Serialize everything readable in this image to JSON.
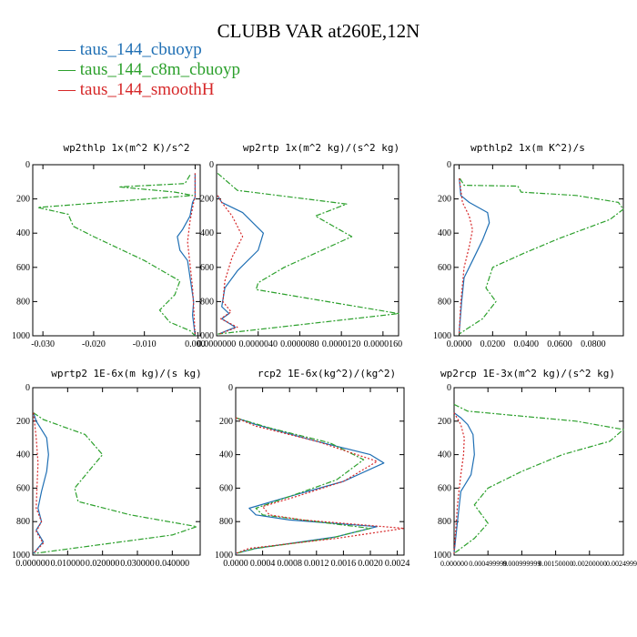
{
  "title": "CLUBB VAR at260E,12N",
  "legend": [
    {
      "label": "— taus_144_cbuoyp",
      "color": "#1f6fb4",
      "dash": "solid"
    },
    {
      "label": "— taus_144_c8m_cbuoyp",
      "color": "#2ca02c",
      "dash": "dashdot"
    },
    {
      "label": "— taus_144_smoothH",
      "color": "#d62728",
      "dash": "dot"
    }
  ],
  "chart_data": [
    {
      "type": "line",
      "title": "wp2thlp  1x(m^2 K)/s^2",
      "xlim": [
        -0.032,
        0.001
      ],
      "ylim": [
        1000,
        0
      ],
      "xticks": [
        -0.03,
        -0.02,
        -0.01,
        0.0
      ],
      "xticklabels": [
        "-0.030",
        "-0.020",
        "-0.010",
        "0.000"
      ],
      "yticks": [
        0,
        200,
        400,
        600,
        800,
        1000
      ],
      "yticklabels": [
        "0",
        "200",
        "400",
        "600",
        "800",
        "1000"
      ],
      "series": [
        {
          "name": "taus_144_cbuoyp",
          "x": [
            0.0,
            0.0,
            -0.0005,
            -0.001,
            -0.0025,
            -0.0035,
            -0.003,
            -0.0015,
            -0.0008,
            -0.0003,
            -0.0005,
            -0.0002,
            0.0
          ],
          "y": [
            50,
            190,
            220,
            300,
            380,
            420,
            500,
            560,
            700,
            800,
            880,
            950,
            1000
          ]
        },
        {
          "name": "taus_144_c8m_cbuoyp",
          "x": [
            -0.001,
            -0.002,
            -0.015,
            -0.004,
            -0.0005,
            -0.031,
            -0.025,
            -0.024,
            -0.02,
            -0.01,
            -0.003,
            -0.004,
            -0.007,
            -0.005,
            -0.001,
            0.0
          ],
          "y": [
            60,
            110,
            130,
            160,
            180,
            250,
            290,
            360,
            420,
            560,
            680,
            760,
            850,
            920,
            970,
            1000
          ]
        },
        {
          "name": "taus_144_smoothH",
          "x": [
            0.0,
            0.0,
            -0.0003,
            -0.001,
            -0.0015,
            -0.001,
            -0.0005,
            -0.0002,
            0.0
          ],
          "y": [
            50,
            190,
            220,
            330,
            450,
            580,
            720,
            880,
            1000
          ]
        }
      ]
    },
    {
      "type": "line",
      "title": "wp2rtp  1x(m^2 kg)/(s^2 kg)",
      "xlim": [
        0,
        1.75e-05
      ],
      "ylim": [
        1000,
        0
      ],
      "xticks": [
        0,
        4e-06,
        8e-06,
        1.2e-05,
        1.6e-05
      ],
      "xticklabels": [
        "0.0000000",
        "0.0000040",
        "0.0000080",
        "0.0000120",
        "0.0000160"
      ],
      "yticks": [
        0,
        200,
        400,
        600,
        800,
        1000
      ],
      "yticklabels": [
        "0",
        "200",
        "400",
        "600",
        "800",
        "1000"
      ],
      "series": [
        {
          "name": "taus_144_cbuoyp",
          "x": [
            1e-07,
            5e-07,
            2.5e-06,
            4.5e-06,
            4e-06,
            2e-06,
            8e-07,
            5e-07,
            1.2e-06,
            5e-07,
            1.8e-06,
            2e-07
          ],
          "y": [
            180,
            220,
            280,
            400,
            500,
            620,
            720,
            830,
            870,
            900,
            950,
            990
          ]
        },
        {
          "name": "taus_144_c8m_cbuoyp",
          "x": [
            1e-07,
            2e-06,
            1.25e-05,
            9.5e-06,
            1.3e-05,
            6.5e-06,
            4e-06,
            3.8e-06,
            1.75e-05,
            1e-07
          ],
          "y": [
            50,
            150,
            230,
            300,
            420,
            600,
            690,
            730,
            870,
            990
          ]
        },
        {
          "name": "taus_144_smoothH",
          "x": [
            1e-07,
            5e-07,
            1.5e-06,
            2.5e-06,
            1.5e-06,
            8e-07,
            6e-07,
            1.4e-06,
            4e-07,
            2e-06,
            2e-07
          ],
          "y": [
            180,
            220,
            300,
            420,
            540,
            680,
            800,
            860,
            900,
            950,
            990
          ]
        }
      ]
    },
    {
      "type": "line",
      "title": "wpthlp2  1x(m K^2)/s",
      "xlim": [
        -0.003,
        0.098
      ],
      "ylim": [
        1000,
        0
      ],
      "xticks": [
        0.0,
        0.02,
        0.04,
        0.06,
        0.08
      ],
      "xticklabels": [
        "0.0000",
        "0.0200",
        "0.0400",
        "0.0600",
        "0.0800"
      ],
      "yticks": [
        0,
        200,
        400,
        600,
        800,
        1000
      ],
      "yticklabels": [
        "0",
        "200",
        "400",
        "600",
        "800",
        "1000"
      ],
      "series": [
        {
          "name": "taus_144_cbuoyp",
          "x": [
            0.0001,
            0.001,
            0.006,
            0.017,
            0.018,
            0.014,
            0.008,
            0.003,
            0.0015,
            0.0
          ],
          "y": [
            80,
            180,
            220,
            280,
            340,
            440,
            560,
            660,
            800,
            990
          ]
        },
        {
          "name": "taus_144_c8m_cbuoyp",
          "x": [
            0.0005,
            0.003,
            0.035,
            0.037,
            0.07,
            0.095,
            0.098,
            0.09,
            0.06,
            0.038,
            0.02,
            0.016,
            0.022,
            0.014,
            0.0
          ],
          "y": [
            80,
            120,
            125,
            160,
            180,
            220,
            260,
            320,
            430,
            520,
            600,
            720,
            800,
            900,
            990
          ]
        },
        {
          "name": "taus_144_smoothH",
          "x": [
            0.0001,
            0.002,
            0.006,
            0.008,
            0.006,
            0.003,
            0.001,
            0.0
          ],
          "y": [
            80,
            220,
            300,
            380,
            480,
            600,
            800,
            990
          ]
        }
      ]
    },
    {
      "type": "line",
      "title": "wprtp2  1E-6x(m kg)/(s kg)",
      "xlim": [
        0,
        0.048
      ],
      "ylim": [
        1000,
        0
      ],
      "xticks": [
        0,
        0.01,
        0.02,
        0.03,
        0.04
      ],
      "xticklabels": [
        "0.000000",
        "0.010000",
        "0.020000",
        "0.030000",
        "0.040000"
      ],
      "yticks": [
        0,
        200,
        400,
        600,
        800,
        1000
      ],
      "yticklabels": [
        "0",
        "200",
        "400",
        "600",
        "800",
        "1000"
      ],
      "series": [
        {
          "name": "taus_144_cbuoyp",
          "x": [
            0.0002,
            0.001,
            0.004,
            0.0045,
            0.004,
            0.0025,
            0.0015,
            0.0025,
            0.001,
            0.003,
            0.0002
          ],
          "y": [
            150,
            200,
            300,
            400,
            500,
            620,
            720,
            800,
            850,
            920,
            990
          ]
        },
        {
          "name": "taus_144_c8m_cbuoyp",
          "x": [
            0.0002,
            0.003,
            0.015,
            0.02,
            0.016,
            0.012,
            0.013,
            0.028,
            0.047,
            0.04,
            0.0005
          ],
          "y": [
            150,
            190,
            280,
            400,
            500,
            600,
            680,
            760,
            830,
            880,
            990
          ]
        },
        {
          "name": "taus_144_smoothH",
          "x": [
            0.0002,
            0.001,
            0.0015,
            0.0012,
            0.001,
            0.0025,
            0.001,
            0.003,
            0.0002
          ],
          "y": [
            150,
            300,
            450,
            600,
            720,
            800,
            860,
            930,
            990
          ]
        }
      ]
    },
    {
      "type": "line",
      "title": "rcp2  1E-6x(kg^2)/(kg^2)",
      "xlim": [
        0,
        0.0025
      ],
      "ylim": [
        1000,
        0
      ],
      "xticks": [
        0,
        0.0004,
        0.0008,
        0.0012,
        0.0016,
        0.002,
        0.0024
      ],
      "xticklabels": [
        "0.0000",
        "0.0004",
        "0.0008",
        "0.0012",
        "0.0016",
        "0.0020",
        "0.0024"
      ],
      "yticks": [
        0,
        200,
        400,
        600,
        800,
        1000
      ],
      "yticklabels": [
        "0",
        "200",
        "400",
        "600",
        "800",
        "1000"
      ],
      "series": [
        {
          "name": "taus_144_cbuoyp",
          "x": [
            0.0,
            0.0003,
            0.0012,
            0.002,
            0.0022,
            0.0016,
            0.0008,
            0.0002,
            0.0003,
            0.0008,
            0.0021,
            0.0015,
            0.0003,
            0.0
          ],
          "y": [
            180,
            220,
            320,
            400,
            450,
            560,
            650,
            720,
            760,
            790,
            830,
            890,
            960,
            990
          ]
        },
        {
          "name": "taus_144_c8m_cbuoyp",
          "x": [
            0.0,
            0.0005,
            0.0014,
            0.0019,
            0.0015,
            0.0008,
            0.0003,
            0.0004,
            0.001,
            0.002,
            0.0014,
            0.0003,
            0.0
          ],
          "y": [
            180,
            240,
            330,
            430,
            550,
            650,
            720,
            760,
            790,
            840,
            900,
            960,
            990
          ]
        },
        {
          "name": "taus_144_smoothH",
          "x": [
            0.0,
            0.0003,
            0.0012,
            0.0021,
            0.0016,
            0.0009,
            0.0004,
            0.0005,
            0.001,
            0.0025,
            0.0015,
            0.0002,
            0.0
          ],
          "y": [
            180,
            230,
            320,
            440,
            560,
            650,
            710,
            760,
            790,
            840,
            900,
            960,
            990
          ]
        }
      ]
    },
    {
      "type": "line",
      "title": "wp2rcp  1E-3x(m^2 kg)/(s^2 kg)",
      "xlim": [
        0,
        0.0025
      ],
      "ylim": [
        1000,
        0
      ],
      "xticks": [
        0,
        0.0005,
        0.001,
        0.0015,
        0.002,
        0.0025
      ],
      "xticklabels": [
        "0.000000",
        "0.000499999",
        "0.000999999",
        "0.00150000",
        "0.00200000",
        "0.00249999"
      ],
      "yticks": [
        0,
        200,
        400,
        600,
        800,
        1000
      ],
      "yticklabels": [
        "0",
        "200",
        "400",
        "600",
        "800",
        "1000"
      ],
      "series": [
        {
          "name": "taus_144_cbuoyp",
          "x": [
            0.0,
            0.0001,
            0.0002,
            0.00028,
            0.0003,
            0.00025,
            0.0001,
            5e-05,
            0.0
          ],
          "y": [
            150,
            180,
            220,
            280,
            400,
            520,
            620,
            800,
            990
          ]
        },
        {
          "name": "taus_144_c8m_cbuoyp",
          "x": [
            0.0,
            0.0002,
            0.0018,
            0.0025,
            0.0023,
            0.0016,
            0.001,
            0.0005,
            0.0003,
            0.0005,
            0.0003,
            0.0
          ],
          "y": [
            100,
            140,
            200,
            250,
            320,
            400,
            500,
            600,
            700,
            810,
            900,
            990
          ]
        },
        {
          "name": "taus_144_smoothH",
          "x": [
            0.0,
            0.0001,
            0.00015,
            0.00014,
            0.0001,
            5e-05,
            0.0
          ],
          "y": [
            150,
            220,
            300,
            400,
            520,
            700,
            990
          ]
        }
      ]
    }
  ]
}
